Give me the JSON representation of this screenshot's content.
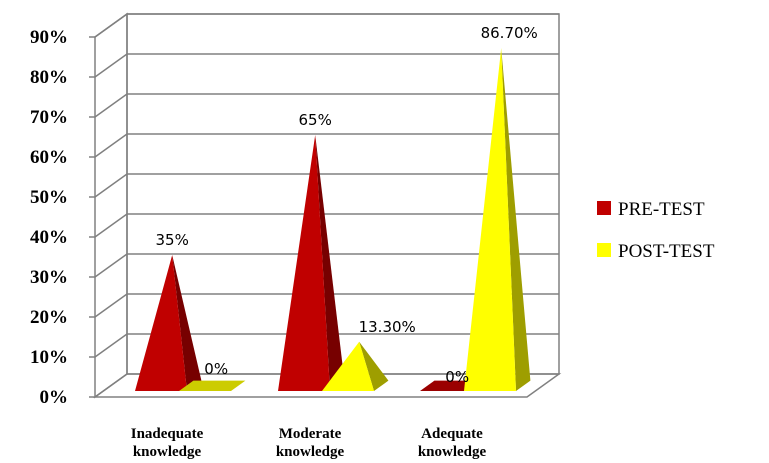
{
  "chart_data": {
    "type": "bar",
    "style": "3d-pyramid",
    "categories": [
      "Inadequate knowledge",
      "Moderate knowledge",
      "Adequate knowledge"
    ],
    "series": [
      {
        "name": "PRE-TEST",
        "values": [
          35,
          65,
          0
        ],
        "labels": [
          "35%",
          "65%",
          "0%"
        ],
        "color": "#c00000"
      },
      {
        "name": "POST-TEST",
        "values": [
          0,
          13.3,
          86.7
        ],
        "labels": [
          "0%",
          "13.30%",
          "86.70%"
        ],
        "color": "#ffff00"
      }
    ],
    "ylim": [
      0,
      90
    ],
    "yticks": [
      "0%",
      "10%",
      "20%",
      "30%",
      "40%",
      "50%",
      "60%",
      "70%",
      "80%",
      "90%"
    ],
    "grid": true,
    "legend": "right"
  }
}
